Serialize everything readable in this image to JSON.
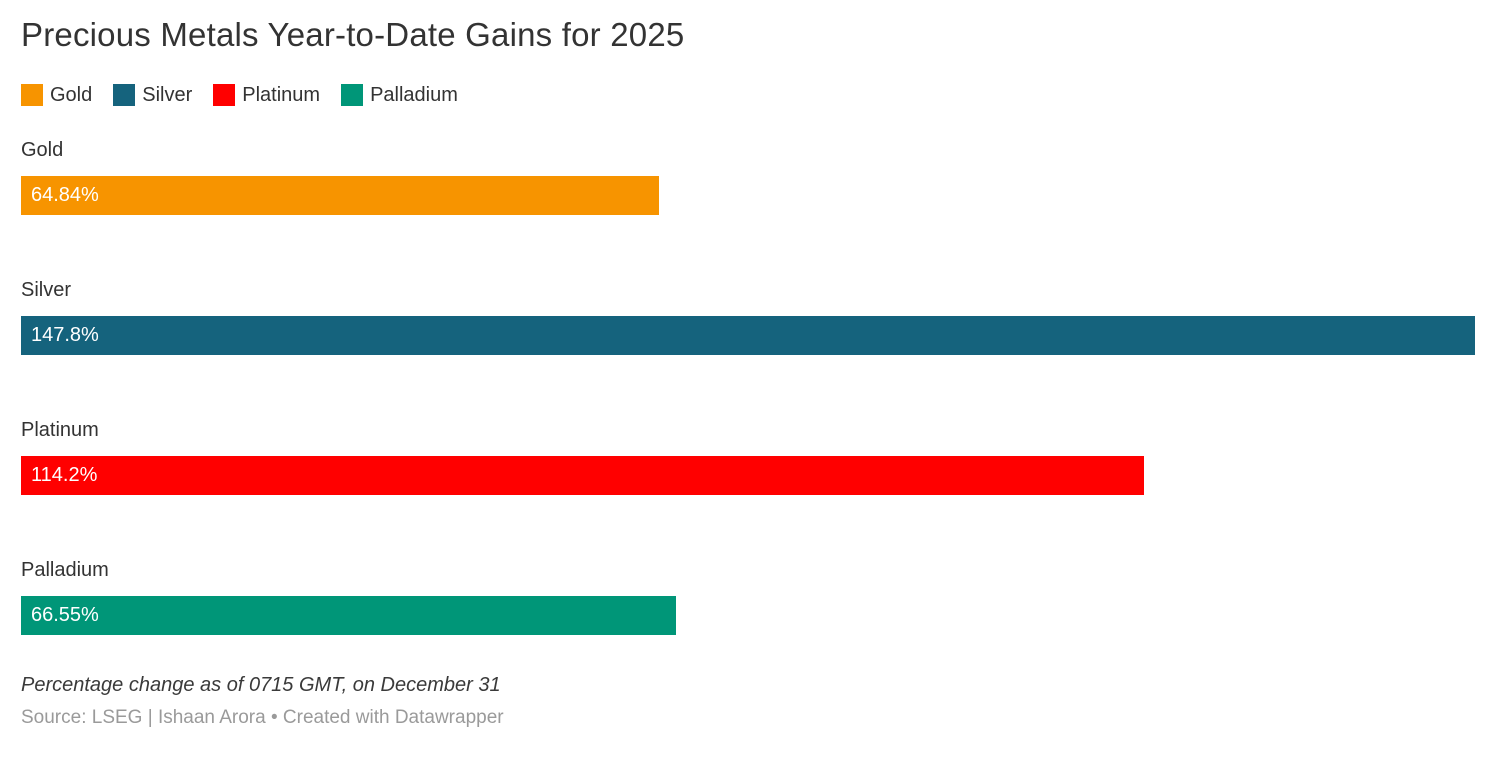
{
  "title": "Precious Metals Year-to-Date Gains for 2025",
  "legend": {
    "items": [
      {
        "label": "Gold",
        "color": "#F79400"
      },
      {
        "label": "Silver",
        "color": "#15637D"
      },
      {
        "label": "Platinum",
        "color": "#FF0000"
      },
      {
        "label": "Palladium",
        "color": "#009678"
      }
    ]
  },
  "chart_data": {
    "type": "bar",
    "orientation": "horizontal",
    "title": "Precious Metals Year-to-Date Gains for 2025",
    "categories": [
      "Gold",
      "Silver",
      "Platinum",
      "Palladium"
    ],
    "values": [
      64.84,
      147.8,
      114.2,
      66.55
    ],
    "value_labels": [
      "64.84%",
      "147.8%",
      "114.2%",
      "66.55%"
    ],
    "colors": [
      "#F79400",
      "#15637D",
      "#FF0000",
      "#009678"
    ],
    "xlim": [
      0,
      147.8
    ],
    "unit": "%",
    "grid": false,
    "legend_position": "top",
    "value_label_position": "inside-start"
  },
  "footer": {
    "note": "Percentage change as of 0715 GMT, on December 31",
    "source": "Source: LSEG | Ishaan Arora • Created with Datawrapper"
  }
}
